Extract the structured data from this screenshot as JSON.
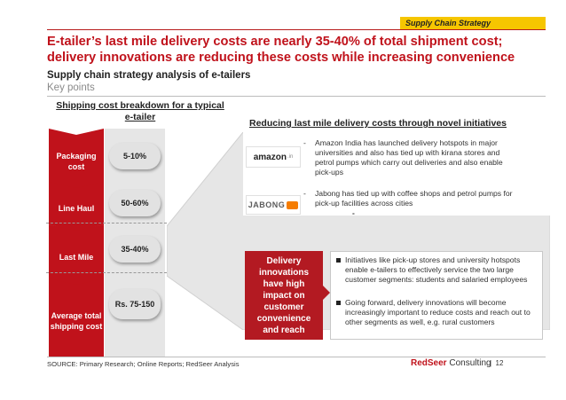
{
  "header": {
    "tag": "Supply Chain Strategy",
    "title_line1": "E-tailer’s last mile delivery costs are nearly 35-40% of total shipment cost;",
    "title_line2": "delivery innovations are reducing these costs while increasing convenience",
    "subtitle": "Supply chain strategy analysis of e-tailers",
    "subsubtitle": "Key points"
  },
  "left": {
    "heading": "Shipping cost breakdown for a typical e-tailer",
    "stages": [
      {
        "label": "Packaging cost",
        "value": "5-10%"
      },
      {
        "label": "Line Haul",
        "value": "50-60%"
      },
      {
        "label": "Last Mile",
        "value": "35-40%"
      },
      {
        "label": "Average total shipping cost",
        "value": "Rs. 75-150"
      }
    ]
  },
  "right": {
    "heading": "Reducing last mile delivery costs through novel initiatives",
    "amazon_logo": "amazon",
    "amazon_logo_suffix": ".in",
    "amazon_text": "Amazon India has launched delivery hotspots in major universities and also has tied up with kirana stores and petrol pumps which carry out deliveries and also enable pick-ups",
    "jabong_logo": "JABONG",
    "jabong_text": "Jabong has tied up with coffee shops and petrol pumps for pick-up facilities across cities",
    "dash": "-",
    "innovations_box": "Delivery innovations have high impact on customer convenience and reach",
    "points": [
      "Initiatives like pick-up stores and university hotspots enable e-tailers to effectively service the two large customer segments: students and salaried employees",
      "Going forward, delivery innovations will become increasingly important to reduce costs and reach out to other segments as well, e.g. rural customers"
    ]
  },
  "footer": {
    "source": "SOURCE: Primary Research; Online Reports; RedSeer Analysis",
    "brand_red": "RedSeer",
    "brand_rest": " Consulting",
    "separator": "|",
    "page": "12"
  }
}
